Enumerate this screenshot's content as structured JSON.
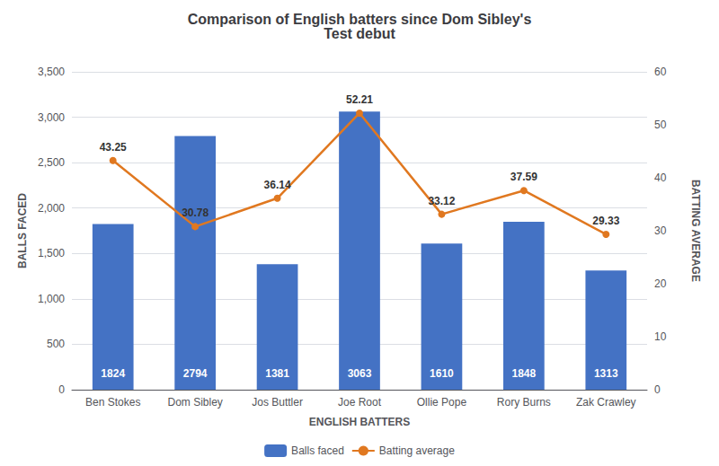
{
  "chart_data": {
    "type": "bar",
    "title": "Comparison of English batters since Dom Sibley's\nTest debut",
    "categories": [
      "Ben Stokes",
      "Dom Sibley",
      "Jos Buttler",
      "Joe Root",
      "Ollie Pope",
      "Rory Burns",
      "Zak Crawley"
    ],
    "series": [
      {
        "name": "Balls faced",
        "type": "bar",
        "color": "#4472C4",
        "data_labels": true,
        "values": [
          1824,
          2794,
          1381,
          3063,
          1610,
          1848,
          1313
        ]
      },
      {
        "name": "Batting average",
        "type": "line",
        "axis": "y2",
        "color": "#E07820",
        "marker": "circle",
        "data_labels": true,
        "values": [
          43.25,
          30.78,
          36.14,
          52.21,
          33.12,
          37.59,
          29.33
        ]
      }
    ],
    "xlabel": "ENGLISH BATTERS",
    "ylabel": "BALLS FACED",
    "y2label": "BATTING AVERAGE",
    "ylim": [
      0,
      3500
    ],
    "yticks": [
      0,
      500,
      1000,
      1500,
      2000,
      2500,
      3000,
      3500
    ],
    "y2lim": [
      0,
      60
    ],
    "y2ticks": [
      0,
      10,
      20,
      30,
      40,
      50,
      60
    ],
    "grid": true,
    "legend": "bottom"
  }
}
